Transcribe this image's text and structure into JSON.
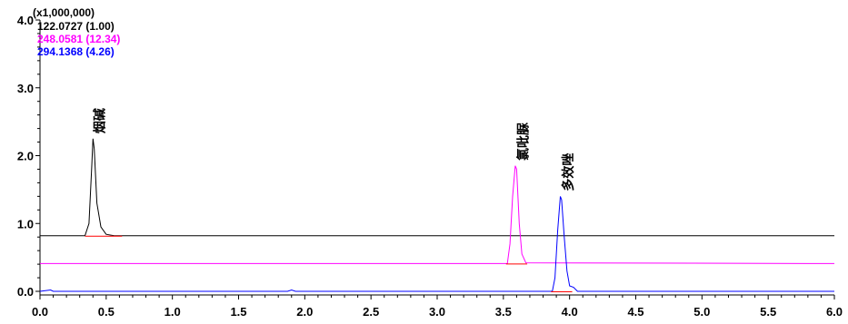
{
  "chart_data": {
    "type": "line",
    "y_multiplier": "(x1,000,000)",
    "xlim": [
      0.0,
      6.0
    ],
    "ylim": [
      -0.1,
      4.0
    ],
    "x_ticks": [
      "0.0",
      "0.5",
      "1.0",
      "1.5",
      "2.0",
      "2.5",
      "3.0",
      "3.5",
      "4.0",
      "4.5",
      "5.0",
      "5.5",
      "6.0"
    ],
    "y_ticks": [
      "0.0",
      "1.0",
      "2.0",
      "3.0",
      "4.0"
    ],
    "grid": false,
    "legend_position": "top-left",
    "series": [
      {
        "name": "122.0727 (1.00)",
        "color": "#000000",
        "baseline_level": 0.82,
        "points": [
          [
            0.0,
            0.82
          ],
          [
            0.34,
            0.82
          ],
          [
            0.37,
            1.0
          ],
          [
            0.39,
            1.8
          ],
          [
            0.4,
            2.25
          ],
          [
            0.41,
            2.1
          ],
          [
            0.43,
            1.3
          ],
          [
            0.46,
            0.95
          ],
          [
            0.5,
            0.84
          ],
          [
            0.56,
            0.82
          ],
          [
            6.0,
            0.82
          ]
        ],
        "integration_segment": [
          0.34,
          0.62
        ]
      },
      {
        "name": "248.0581 (12.34)",
        "color": "#ff00ff",
        "baseline_level": 0.41,
        "points": [
          [
            0.0,
            0.41
          ],
          [
            3.53,
            0.41
          ],
          [
            3.55,
            0.7
          ],
          [
            3.57,
            1.4
          ],
          [
            3.59,
            1.85
          ],
          [
            3.6,
            1.8
          ],
          [
            3.62,
            1.0
          ],
          [
            3.64,
            0.55
          ],
          [
            3.67,
            0.42
          ],
          [
            6.0,
            0.41
          ]
        ],
        "integration_segment": [
          3.52,
          3.68
        ]
      },
      {
        "name": "294.1368 (4.26)",
        "color": "#0000ff",
        "baseline_level": 0.0,
        "points": [
          [
            0.0,
            0.0
          ],
          [
            0.08,
            0.02
          ],
          [
            0.1,
            0.0
          ],
          [
            1.87,
            0.0
          ],
          [
            1.9,
            0.02
          ],
          [
            1.93,
            0.0
          ],
          [
            3.87,
            0.0
          ],
          [
            3.89,
            0.2
          ],
          [
            3.91,
            0.9
          ],
          [
            3.93,
            1.4
          ],
          [
            3.94,
            1.35
          ],
          [
            3.96,
            0.8
          ],
          [
            3.98,
            0.3
          ],
          [
            4.0,
            0.08
          ],
          [
            4.03,
            0.06
          ],
          [
            4.06,
            0.0
          ],
          [
            6.0,
            0.0
          ]
        ],
        "integration_segment": [
          3.86,
          4.02
        ]
      }
    ],
    "annotations": [
      {
        "text": "烟碱",
        "x": 0.4,
        "y": 2.3,
        "color": "#000000"
      },
      {
        "text": "氯吡脲",
        "x": 3.6,
        "y": 1.9,
        "color": "#000000"
      },
      {
        "text": "多效唑",
        "x": 3.94,
        "y": 1.45,
        "color": "#000000"
      }
    ]
  }
}
